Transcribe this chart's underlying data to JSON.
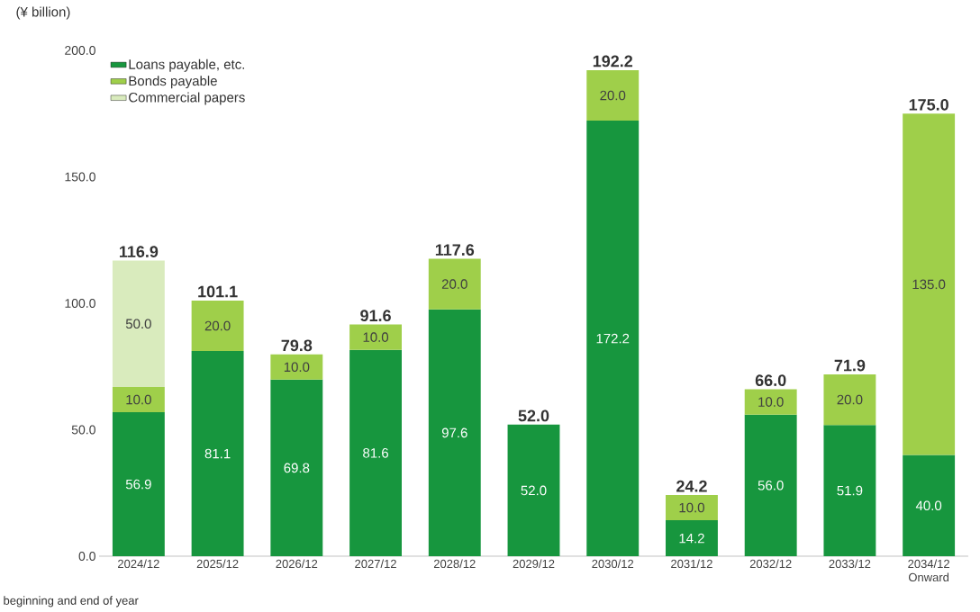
{
  "chart_data": {
    "type": "bar",
    "stacked": true,
    "ylabel": "(¥ billion)",
    "categories": [
      "2024/12",
      "2025/12",
      "2026/12",
      "2027/12",
      "2028/12",
      "2029/12",
      "2030/12",
      "2031/12",
      "2032/12",
      "2033/12",
      "2034/12 Onward"
    ],
    "series": [
      {
        "name": "Loans payable, etc.",
        "color": "#17963e",
        "values": [
          56.9,
          81.1,
          69.8,
          81.6,
          97.6,
          52.0,
          172.2,
          14.2,
          56.0,
          51.9,
          40.0
        ],
        "value_labels": [
          "56.9",
          "81.1",
          "69.8",
          "81.6",
          "97.6",
          "52.0",
          "172.2",
          "14.2",
          "56.0",
          "51.9",
          "40.0"
        ]
      },
      {
        "name": "Bonds payable",
        "color": "#9fcf4a",
        "values": [
          10.0,
          20.0,
          10.0,
          10.0,
          20.0,
          null,
          20.0,
          10.0,
          10.0,
          20.0,
          135.0
        ],
        "value_labels": [
          "10.0",
          "20.0",
          "10.0",
          "10.0",
          "20.0",
          null,
          "20.0",
          "10.0",
          "10.0",
          "20.0",
          "135.0"
        ]
      },
      {
        "name": "Commercial papers",
        "color": "#d9ebbd",
        "values": [
          50.0,
          null,
          null,
          null,
          null,
          null,
          null,
          null,
          null,
          null,
          null
        ],
        "value_labels": [
          "50.0",
          null,
          null,
          null,
          null,
          null,
          null,
          null,
          null,
          null,
          null
        ]
      }
    ],
    "totals": [
      "116.9",
      "101.1",
      "79.8",
      "91.6",
      "117.6",
      "52.0",
      "192.2",
      "24.2",
      "66.0",
      "71.9",
      "175.0"
    ],
    "ylim": [
      0,
      200
    ],
    "yticks": [
      {
        "value": 0,
        "label": "0.0"
      },
      {
        "value": 50,
        "label": "50.0"
      },
      {
        "value": 100,
        "label": "100.0"
      },
      {
        "value": 150,
        "label": "150.0"
      },
      {
        "value": 200,
        "label": "200.0"
      }
    ],
    "legend": "top left",
    "annotations": [
      "beginning and end of year"
    ]
  }
}
